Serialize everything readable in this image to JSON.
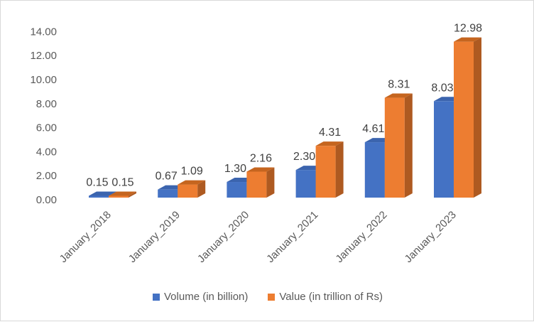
{
  "chart_data": {
    "type": "bar",
    "categories": [
      "January_2018",
      "January_2019",
      "January_2020",
      "January_2021",
      "January_2022",
      "January_2023"
    ],
    "series": [
      {
        "name": "Volume (in billion)",
        "values": [
          0.15,
          0.67,
          1.3,
          2.3,
          4.61,
          8.03
        ],
        "labels": [
          "0.15",
          "0.67",
          "1.30",
          "2.30",
          "4.61",
          "8.03"
        ],
        "color": "#4472C4",
        "side_color": "#2F528F",
        "top_color": "#3B64AE"
      },
      {
        "name": "Value (in trillion of Rs)",
        "values": [
          0.15,
          1.09,
          2.16,
          4.31,
          8.31,
          12.98
        ],
        "labels": [
          "0.15",
          "1.09",
          "2.16",
          "4.31",
          "8.31",
          "12.98"
        ],
        "color": "#ED7D31",
        "side_color": "#AE5A21",
        "top_color": "#C5651F"
      }
    ],
    "yticks": [
      "0.00",
      "2.00",
      "4.00",
      "6.00",
      "8.00",
      "10.00",
      "12.00",
      "14.00"
    ],
    "ylim": [
      0,
      14
    ],
    "style": "3d-clustered-column",
    "grid": false,
    "legend_position": "bottom"
  }
}
